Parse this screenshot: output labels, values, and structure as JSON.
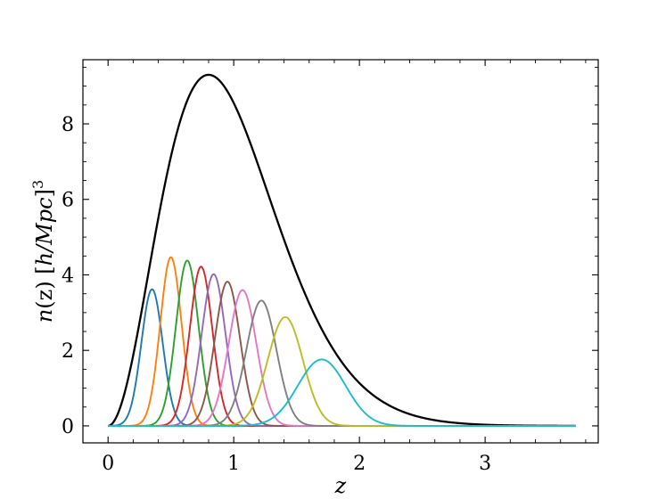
{
  "chart_data": {
    "type": "line",
    "title": "",
    "xlabel": "z",
    "ylabel": "n(z) [h/Mpc]^3",
    "ylabel_parts": {
      "main": "n(z) [",
      "italic": "h/Mpc",
      "close": "]",
      "sup": "3"
    },
    "xlim": [
      -0.2,
      3.9
    ],
    "ylim": [
      -0.45,
      9.7
    ],
    "xticks": [
      0,
      1,
      2,
      3
    ],
    "yticks": [
      0,
      2,
      4,
      6,
      8
    ],
    "xtick_labels": [
      "0",
      "1",
      "2",
      "3"
    ],
    "ytick_labels": [
      "0",
      "2",
      "4",
      "6",
      "8"
    ],
    "grid": false,
    "legend": "none",
    "x_range_plotted": [
      0.0,
      3.72
    ],
    "series": [
      {
        "kind": "total",
        "color": "#000000",
        "peak_x": 0.8,
        "peak_y": 9.3,
        "note_shape": "skewed"
      },
      {
        "color": "#1f77b4",
        "mu": 0.35,
        "sigma": 0.085,
        "amp": 3.62
      },
      {
        "color": "#ff7f0e",
        "mu": 0.5,
        "sigma": 0.085,
        "amp": 4.47
      },
      {
        "color": "#2ca02c",
        "mu": 0.63,
        "sigma": 0.09,
        "amp": 4.38
      },
      {
        "color": "#d62728",
        "mu": 0.74,
        "sigma": 0.09,
        "amp": 4.22
      },
      {
        "color": "#9467bd",
        "mu": 0.84,
        "sigma": 0.095,
        "amp": 4.02
      },
      {
        "color": "#8c564b",
        "mu": 0.95,
        "sigma": 0.1,
        "amp": 3.82
      },
      {
        "color": "#e377c2",
        "mu": 1.07,
        "sigma": 0.11,
        "amp": 3.6
      },
      {
        "color": "#7f7f7f",
        "mu": 1.22,
        "sigma": 0.12,
        "amp": 3.32
      },
      {
        "color": "#bcbd22",
        "mu": 1.41,
        "sigma": 0.14,
        "amp": 2.88
      },
      {
        "color": "#17becf",
        "mu": 1.7,
        "sigma": 0.19,
        "amp": 1.76
      }
    ]
  }
}
